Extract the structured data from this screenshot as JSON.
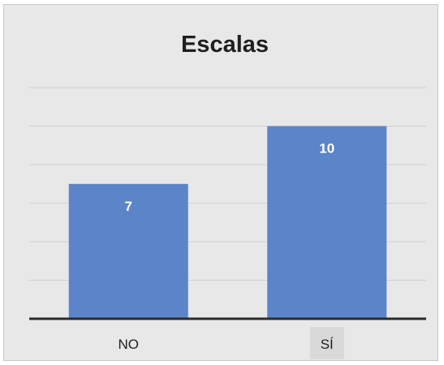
{
  "chart_data": {
    "type": "bar",
    "title": "Escalas",
    "categories": [
      "NO",
      "SÍ"
    ],
    "values": [
      7,
      10
    ],
    "ylim": [
      0,
      12
    ],
    "grid": true,
    "legend": "none",
    "colors": {
      "bar": "#5b84c9",
      "gridline": "#d0d0d0",
      "axis": "#2b2b2b",
      "background": "#e8e8e8",
      "selected_category_bg": "#d9d9d9"
    },
    "selected_category": "SÍ"
  }
}
